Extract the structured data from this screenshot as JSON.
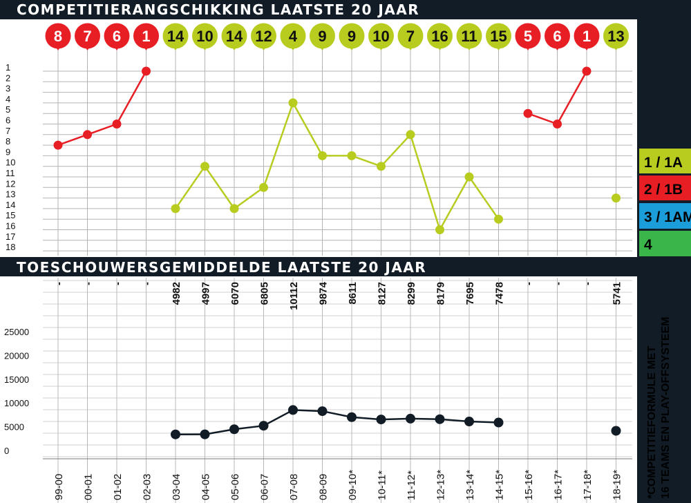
{
  "chart_data": [
    {
      "type": "line",
      "title": "COMPETITIERANGSCHIKKING LAATSTE 20 JAAR",
      "y_ticks": [
        "1",
        "2",
        "3",
        "4",
        "5",
        "6",
        "7",
        "8",
        "9",
        "10",
        "11",
        "12",
        "13",
        "14",
        "15",
        "16",
        "17",
        "18"
      ],
      "ylim": [
        1,
        18
      ],
      "y_inverted": true,
      "grid": true,
      "seasons": [
        "99-00",
        "00-01",
        "01-02",
        "02-03",
        "03-04",
        "04-05",
        "05-06",
        "06-07",
        "07-08",
        "08-09",
        "09-10*",
        "10-11*",
        "11-12*",
        "12-13*",
        "13-14*",
        "14-15*",
        "15-16*",
        "16-17*",
        "17-18*",
        "18-19*"
      ],
      "positions": [
        8,
        7,
        6,
        1,
        14,
        10,
        14,
        12,
        4,
        9,
        9,
        10,
        7,
        16,
        11,
        15,
        5,
        6,
        1,
        13
      ],
      "divisions": [
        "2 / 1B",
        "2 / 1B",
        "2 / 1B",
        "2 / 1B",
        "1 / 1A",
        "1 / 1A",
        "1 / 1A",
        "1 / 1A",
        "1 / 1A",
        "1 / 1A",
        "1 / 1A",
        "1 / 1A",
        "1 / 1A",
        "1 / 1A",
        "1 / 1A",
        "1 / 1A",
        "2 / 1B",
        "2 / 1B",
        "2 / 1B",
        "1 / 1A"
      ],
      "ranks_plotted": [
        8,
        7,
        6,
        1,
        14,
        10,
        14,
        12,
        4,
        9,
        9,
        10,
        7,
        16,
        11,
        15,
        5,
        6,
        1,
        13
      ],
      "legend": [
        {
          "label": "1 / 1A",
          "color": "#b7cc1f"
        },
        {
          "label": "2 / 1B",
          "color": "#e81e25"
        },
        {
          "label": "3 / 1AM",
          "color": "#1b9dd9"
        },
        {
          "label": "4",
          "color": "#39b54a"
        }
      ],
      "legend_placement": "right"
    },
    {
      "type": "line",
      "title": "TOESCHOUWERSGEMIDDELDE LAATSTE 20 JAAR",
      "y_ticks": [
        "25000",
        "20000",
        "15000",
        "10000",
        "5000",
        "0"
      ],
      "ylim": [
        0,
        25000
      ],
      "grid": true,
      "seasons": [
        "99-00",
        "00-01",
        "01-02",
        "02-03",
        "03-04",
        "04-05",
        "05-06",
        "06-07",
        "07-08",
        "08-09",
        "09-10*",
        "10-11*",
        "11-12*",
        "12-13*",
        "13-14*",
        "14-15*",
        "15-16*",
        "16-17*",
        "17-18*",
        "18-19*"
      ],
      "labels": [
        "-",
        "-",
        "-",
        "-",
        "4982",
        "4997",
        "6070",
        "6805",
        "10112",
        "9874",
        "8611",
        "8127",
        "8299",
        "8179",
        "7695",
        "7478",
        "-",
        "-",
        "-",
        "5741"
      ],
      "values": [
        null,
        null,
        null,
        null,
        4982,
        4997,
        6070,
        6805,
        10112,
        9874,
        8611,
        8127,
        8299,
        8179,
        7695,
        7478,
        null,
        null,
        null,
        5741
      ],
      "footnote": "*COMPETITIEFORMULE MET 16 TEAMS EN PLAY-OFFSYSTEEM"
    }
  ]
}
